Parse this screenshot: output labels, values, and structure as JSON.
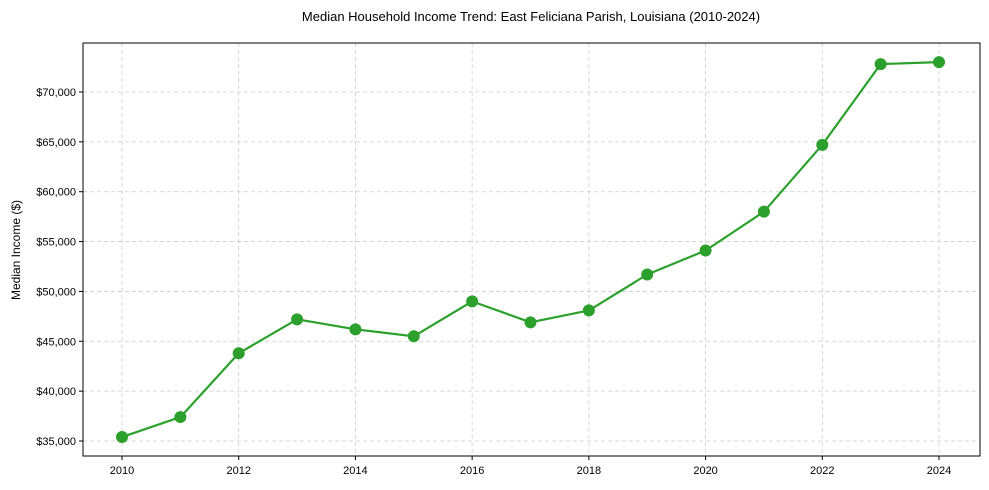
{
  "chart_data": {
    "type": "line",
    "title": "Median Household Income Trend: East Feliciana Parish, Louisiana (2010-2024)",
    "xlabel": "",
    "ylabel": "Median Income ($)",
    "x": [
      2010,
      2011,
      2012,
      2013,
      2014,
      2015,
      2016,
      2017,
      2018,
      2019,
      2020,
      2021,
      2022,
      2023,
      2024
    ],
    "series": [
      {
        "name": "Median Household Income",
        "color": "#2ca02c",
        "values": [
          35400,
          37400,
          43800,
          47200,
          46200,
          45500,
          49000,
          46900,
          48100,
          51700,
          54100,
          58000,
          64700,
          72800,
          73000
        ]
      }
    ],
    "xticks": [
      2010,
      2012,
      2014,
      2016,
      2018,
      2020,
      2022,
      2024
    ],
    "xtick_labels": [
      "2010",
      "2012",
      "2014",
      "2016",
      "2018",
      "2020",
      "2022",
      "2024"
    ],
    "yticks": [
      35000,
      40000,
      45000,
      50000,
      55000,
      60000,
      65000,
      70000
    ],
    "ytick_labels": [
      "$35,000",
      "$40,000",
      "$45,000",
      "$50,000",
      "$55,000",
      "$60,000",
      "$65,000",
      "$70,000"
    ],
    "xlim": [
      2009.33,
      2024.67
    ],
    "ylim": [
      33500,
      75000
    ],
    "grid": true,
    "grid_style": "dashed",
    "legend": null
  }
}
